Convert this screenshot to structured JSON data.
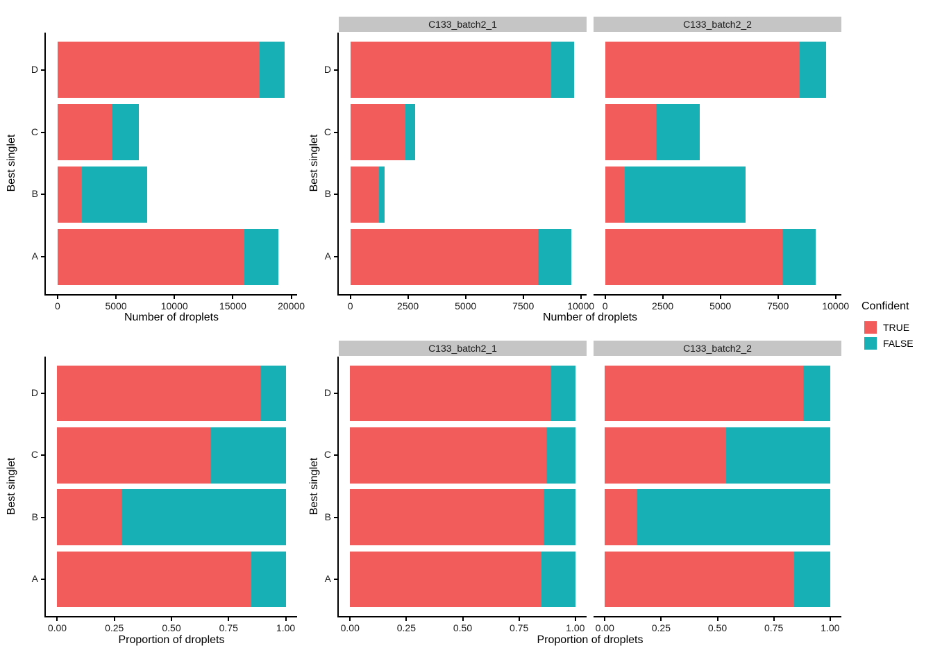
{
  "figure": {
    "background": "#FFFFFF",
    "colors": {
      "true_fill": "#F25C5A",
      "false_fill": "#17B1B5",
      "strip_bg": "#C5C5C5",
      "axis_line": "#000000",
      "tick_text": "#1A1A1A",
      "title_text": "#000000"
    },
    "legend": {
      "title": "Confident",
      "items": [
        {
          "label": "TRUE",
          "color": "#F25C5A"
        },
        {
          "label": "FALSE",
          "color": "#17B1B5"
        }
      ]
    },
    "facet_labels": [
      "C133_batch2_1",
      "C133_batch2_2"
    ]
  },
  "chart_data": [
    {
      "id": "counts-all",
      "type": "bar",
      "orientation": "horizontal",
      "stacked": true,
      "facet": null,
      "xlabel": "Number of droplets",
      "ylabel": "Best singlet",
      "categories": [
        "A",
        "B",
        "C",
        "D"
      ],
      "series": [
        {
          "name": "TRUE",
          "values": [
            16000,
            2100,
            4650,
            17300
          ]
        },
        {
          "name": "FALSE",
          "values": [
            2900,
            5600,
            2300,
            2150
          ]
        }
      ],
      "xticks": [
        0,
        5000,
        10000,
        15000,
        20000
      ],
      "xtick_labels": [
        "0",
        "5000",
        "10000",
        "15000",
        "20000"
      ],
      "xlim": [
        -1000,
        20500
      ],
      "grid": false
    },
    {
      "id": "counts-batch1",
      "type": "bar",
      "orientation": "horizontal",
      "stacked": true,
      "facet": "C133_batch2_1",
      "xlabel": "Number of droplets",
      "ylabel": "Best singlet",
      "categories": [
        "A",
        "B",
        "C",
        "D"
      ],
      "series": [
        {
          "name": "TRUE",
          "values": [
            8150,
            1250,
            2400,
            8700
          ]
        },
        {
          "name": "FALSE",
          "values": [
            1450,
            250,
            400,
            1000
          ]
        }
      ],
      "xticks": [
        0,
        2500,
        5000,
        7500,
        10000
      ],
      "xtick_labels": [
        "0",
        "2500",
        "5000",
        "7500",
        "10000"
      ],
      "xlim": [
        -500,
        10250
      ],
      "grid": false
    },
    {
      "id": "counts-batch2",
      "type": "bar",
      "orientation": "horizontal",
      "stacked": true,
      "facet": "C133_batch2_2",
      "xlabel": "Number of droplets",
      "ylabel": "Best singlet",
      "categories": [
        "A",
        "B",
        "C",
        "D"
      ],
      "series": [
        {
          "name": "TRUE",
          "values": [
            7700,
            850,
            2200,
            8450
          ]
        },
        {
          "name": "FALSE",
          "values": [
            1450,
            5250,
            1900,
            1150
          ]
        }
      ],
      "xticks": [
        0,
        2500,
        5000,
        7500,
        10000
      ],
      "xtick_labels": [
        "0",
        "2500",
        "5000",
        "7500",
        "10000"
      ],
      "xlim": [
        -500,
        10250
      ],
      "grid": false
    },
    {
      "id": "prop-all",
      "type": "bar",
      "orientation": "horizontal",
      "stacked": true,
      "facet": null,
      "xlabel": "Proportion of droplets",
      "ylabel": "Best singlet",
      "categories": [
        "A",
        "B",
        "C",
        "D"
      ],
      "series": [
        {
          "name": "TRUE",
          "values": [
            0.85,
            0.28,
            0.67,
            0.89
          ]
        },
        {
          "name": "FALSE",
          "values": [
            0.15,
            0.72,
            0.33,
            0.11
          ]
        }
      ],
      "xticks": [
        0,
        0.25,
        0.5,
        0.75,
        1
      ],
      "xtick_labels": [
        "0.00",
        "0.25",
        "0.50",
        "0.75",
        "1.00"
      ],
      "xlim": [
        -0.05,
        1.05
      ],
      "grid": false
    },
    {
      "id": "prop-batch1",
      "type": "bar",
      "orientation": "horizontal",
      "stacked": true,
      "facet": "C133_batch2_1",
      "xlabel": "Proportion of droplets",
      "ylabel": "Best singlet",
      "categories": [
        "A",
        "B",
        "C",
        "D"
      ],
      "series": [
        {
          "name": "TRUE",
          "values": [
            0.85,
            0.86,
            0.87,
            0.89
          ]
        },
        {
          "name": "FALSE",
          "values": [
            0.15,
            0.14,
            0.13,
            0.11
          ]
        }
      ],
      "xticks": [
        0,
        0.25,
        0.5,
        0.75,
        1
      ],
      "xtick_labels": [
        "0.00",
        "0.25",
        "0.50",
        "0.75",
        "1.00"
      ],
      "xlim": [
        -0.05,
        1.05
      ],
      "grid": false
    },
    {
      "id": "prop-batch2",
      "type": "bar",
      "orientation": "horizontal",
      "stacked": true,
      "facet": "C133_batch2_2",
      "xlabel": "Proportion of droplets",
      "ylabel": "Best singlet",
      "categories": [
        "A",
        "B",
        "C",
        "D"
      ],
      "series": [
        {
          "name": "TRUE",
          "values": [
            0.84,
            0.14,
            0.54,
            0.88
          ]
        },
        {
          "name": "FALSE",
          "values": [
            0.16,
            0.86,
            0.46,
            0.12
          ]
        }
      ],
      "xticks": [
        0,
        0.25,
        0.5,
        0.75,
        1
      ],
      "xtick_labels": [
        "0.00",
        "0.25",
        "0.50",
        "0.75",
        "1.00"
      ],
      "xlim": [
        -0.05,
        1.05
      ],
      "grid": false
    }
  ]
}
